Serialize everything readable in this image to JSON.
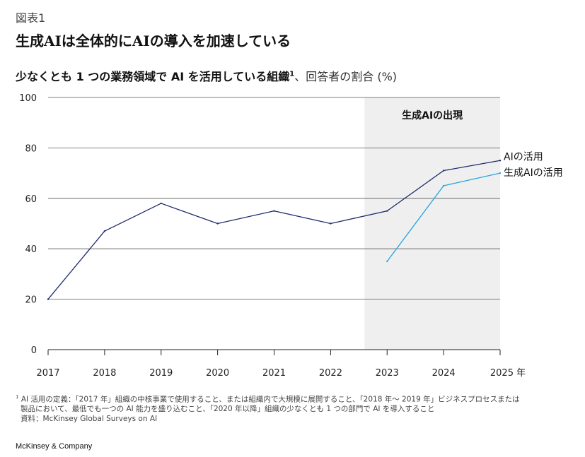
{
  "figure_label": "図表1",
  "headline": "生成AIは全体的にAIの導入を加速している",
  "subtitle": {
    "bold": "少なくとも 1 つの業務領域で AI を活用している組織",
    "sup": "1",
    "light": "、回答者の割合 (%)"
  },
  "chart_data": {
    "type": "line",
    "x": [
      2017,
      2018,
      2019,
      2020,
      2021,
      2022,
      2023,
      2024,
      2025
    ],
    "x_tick_labels": [
      "2017",
      "2018",
      "2019",
      "2020",
      "2021",
      "2022",
      "2023",
      "2024",
      "2025 年"
    ],
    "ylim": [
      0,
      100
    ],
    "y_ticks": [
      0,
      20,
      40,
      60,
      80,
      100
    ],
    "y_tick_labels": [
      "0",
      "20",
      "40",
      "60",
      "80",
      "100"
    ],
    "grid": "horizontal",
    "shaded_region": {
      "x_start": 2022.6,
      "x_end": 2025,
      "label": "生成AIの出現",
      "color": "#efefef"
    },
    "series": [
      {
        "name": "AIの活用",
        "color": "#1f2a6b",
        "x": [
          2017,
          2018,
          2019,
          2020,
          2021,
          2022,
          2023,
          2024,
          2025
        ],
        "values": [
          20,
          47,
          58,
          50,
          55,
          50,
          55,
          71,
          75
        ]
      },
      {
        "name": "生成AIの活用",
        "color": "#2aa7de",
        "x": [
          2023,
          2024,
          2025
        ],
        "values": [
          35,
          65,
          70
        ]
      }
    ],
    "legend": "end-of-line labels"
  },
  "footnotes": {
    "mark": "1",
    "line1": "AI 活用の定義：「2017 年」組織の中核事業で使用すること、または組織内で大規模に展開すること、「2018 年～ 2019 年」ビジネスプロセスまたは",
    "line2": "製品において、最低でも一つの AI 能力を盛り込むこと、「2020 年以降」組織の少なくとも 1 つの部門で AI を導入すること",
    "source": "資料：McKinsey Global Surveys on AI"
  },
  "brand": "McKinsey & Company"
}
